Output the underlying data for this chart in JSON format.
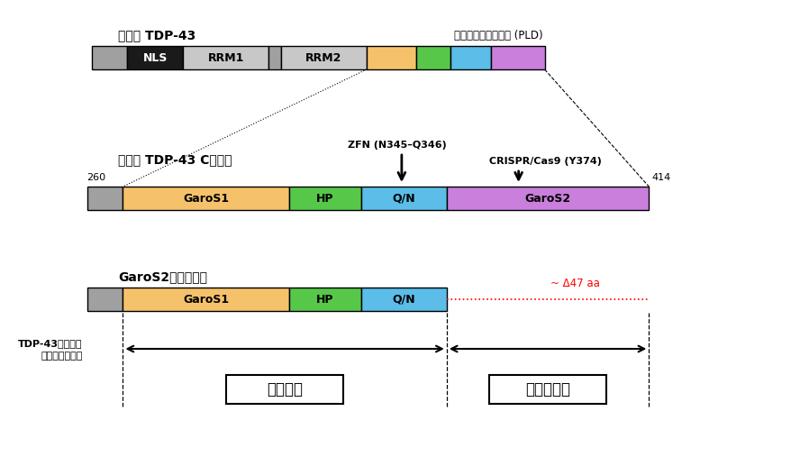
{
  "bg_color": "#ffffff",
  "title1": "野生型 TDP-43",
  "title2": "野生型 TDP-43 C末領域",
  "title3": "GaroS2欠損マウス",
  "prion_label": "プリオン様ドメイン (PLD)",
  "label_260": "260",
  "label_414": "414",
  "zfn_label": "ZFN (N345–Q346)",
  "crispr_label": "CRISPR/Cas9 (Y374)",
  "delta_label": "~ Δ47 aa",
  "stability_line1": "TDP-43の安定性",
  "stability_line2": "マウスの生存性",
  "essential_label": "必須領域",
  "nonessential_label": "非必須領域",
  "colors": {
    "nls": "#1a1a1a",
    "rrm": "#c8c8c8",
    "gray_bar": "#a0a0a0",
    "garos1": "#f5c26b",
    "hp": "#57c74a",
    "qn": "#5bbde8",
    "garos2": "#c97fdb",
    "pld1": "#f5c26b",
    "pld2": "#57c74a",
    "pld3": "#5bbde8",
    "pld4": "#c97fdb"
  }
}
